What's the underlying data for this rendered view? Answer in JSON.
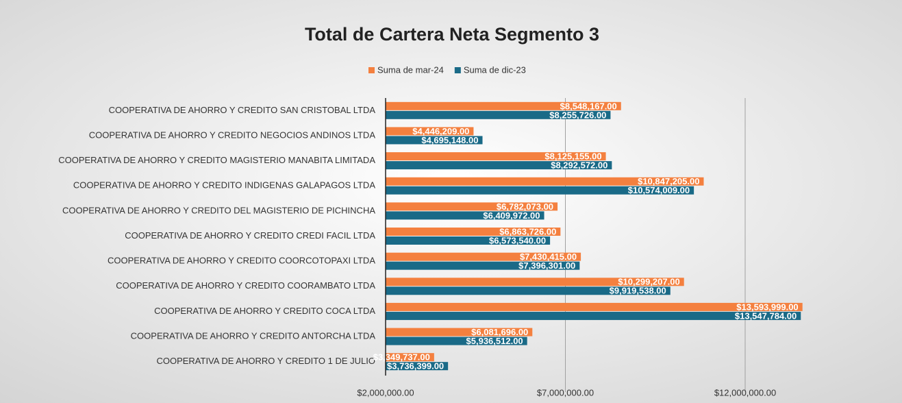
{
  "chart_data": {
    "type": "hbar",
    "title": "Total de Cartera Neta Segmento 3",
    "categories": [
      "COOPERATIVA DE AHORRO Y CREDITO SAN CRISTOBAL LTDA",
      "COOPERATIVA DE AHORRO Y CREDITO NEGOCIOS ANDINOS LTDA",
      "COOPERATIVA DE AHORRO Y CREDITO MAGISTERIO MANABITA LIMITADA",
      "COOPERATIVA DE AHORRO Y CREDITO INDIGENAS GALAPAGOS LTDA",
      "COOPERATIVA DE AHORRO Y CREDITO DEL MAGISTERIO DE PICHINCHA",
      "COOPERATIVA DE AHORRO Y CREDITO CREDI FACIL LTDA",
      "COOPERATIVA DE AHORRO Y CREDITO COORCOTOPAXI LTDA",
      "COOPERATIVA DE AHORRO Y CREDITO COORAMBATO LTDA",
      "COOPERATIVA DE AHORRO Y CREDITO COCA LTDA",
      "COOPERATIVA DE AHORRO Y CREDITO ANTORCHA LTDA",
      "COOPERATIVA DE AHORRO Y CREDITO 1 DE JULIO"
    ],
    "series": [
      {
        "name": "Suma de mar-24",
        "color": "#f4803f",
        "values": [
          8548167,
          4446209,
          8125155,
          10847205,
          6782073,
          6863726,
          7430415,
          10299207,
          13593999,
          6081696,
          3349737
        ],
        "value_labels": [
          "$8,548,167.00",
          "$4,446,209.00",
          "$8,125,155.00",
          "$10,847,205.00",
          "$6,782,073.00",
          "$6,863,726.00",
          "$7,430,415.00",
          "$10,299,207.00",
          "$13,593,999.00",
          "$6,081,696.00",
          "$3,349,737.00"
        ]
      },
      {
        "name": "Suma de dic-23",
        "color": "#1a6a87",
        "values": [
          8255726,
          4695148,
          8292572,
          10574009,
          6409972,
          6573540,
          7396301,
          9919538,
          13547784,
          5936512,
          3736399
        ],
        "value_labels": [
          "$8,255,726.00",
          "$4,695,148.00",
          "$8,292,572.00",
          "$10,574,009.00",
          "$6,409,972.00",
          "$6,573,540.00",
          "$7,396,301.00",
          "$9,919,538.00",
          "$13,547,784.00",
          "$5,936,512.00",
          "$3,736,399.00"
        ]
      }
    ],
    "xlim": [
      2000000,
      16000000
    ],
    "xticks": [
      {
        "value": 2000000,
        "label": "$2,000,000.00"
      },
      {
        "value": 7000000,
        "label": "$7,000,000.00"
      },
      {
        "value": 12000000,
        "label": "$12,000,000.00"
      }
    ],
    "grid": true
  }
}
